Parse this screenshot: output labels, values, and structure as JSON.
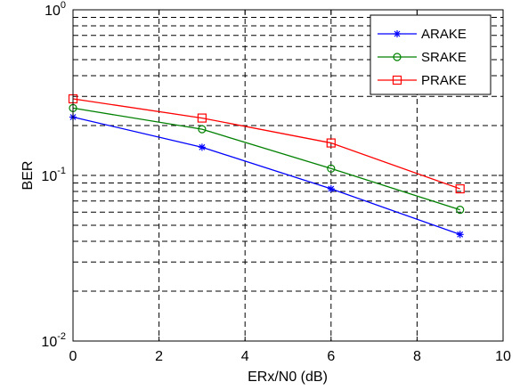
{
  "chart_data": {
    "type": "line",
    "title": "",
    "xlabel": "ERx/N0 (dB)",
    "ylabel": "BER",
    "xlim": [
      0,
      10
    ],
    "ylim": [
      0.01,
      1
    ],
    "y_scale": "log",
    "grid": true,
    "legend_position": "top-right",
    "x_ticks": [
      "0",
      "2",
      "4",
      "6",
      "8",
      "10"
    ],
    "y_ticks": [
      {
        "base": "10",
        "exp": "-2",
        "value": 0.01
      },
      {
        "base": "10",
        "exp": "-1",
        "value": 0.1
      },
      {
        "base": "10",
        "exp": "0",
        "value": 1
      }
    ],
    "series": [
      {
        "name": "ARAKE",
        "color": "#0000ff",
        "marker": "star",
        "x": [
          0,
          3,
          6,
          9
        ],
        "y": [
          0.225,
          0.148,
          0.083,
          0.044
        ]
      },
      {
        "name": "SRAKE",
        "color": "#008000",
        "marker": "circle",
        "x": [
          0,
          3,
          6,
          9
        ],
        "y": [
          0.255,
          0.19,
          0.11,
          0.062
        ]
      },
      {
        "name": "PRAKE",
        "color": "#ff0000",
        "marker": "square",
        "x": [
          0,
          3,
          6,
          9
        ],
        "y": [
          0.29,
          0.222,
          0.157,
          0.083
        ]
      }
    ]
  }
}
